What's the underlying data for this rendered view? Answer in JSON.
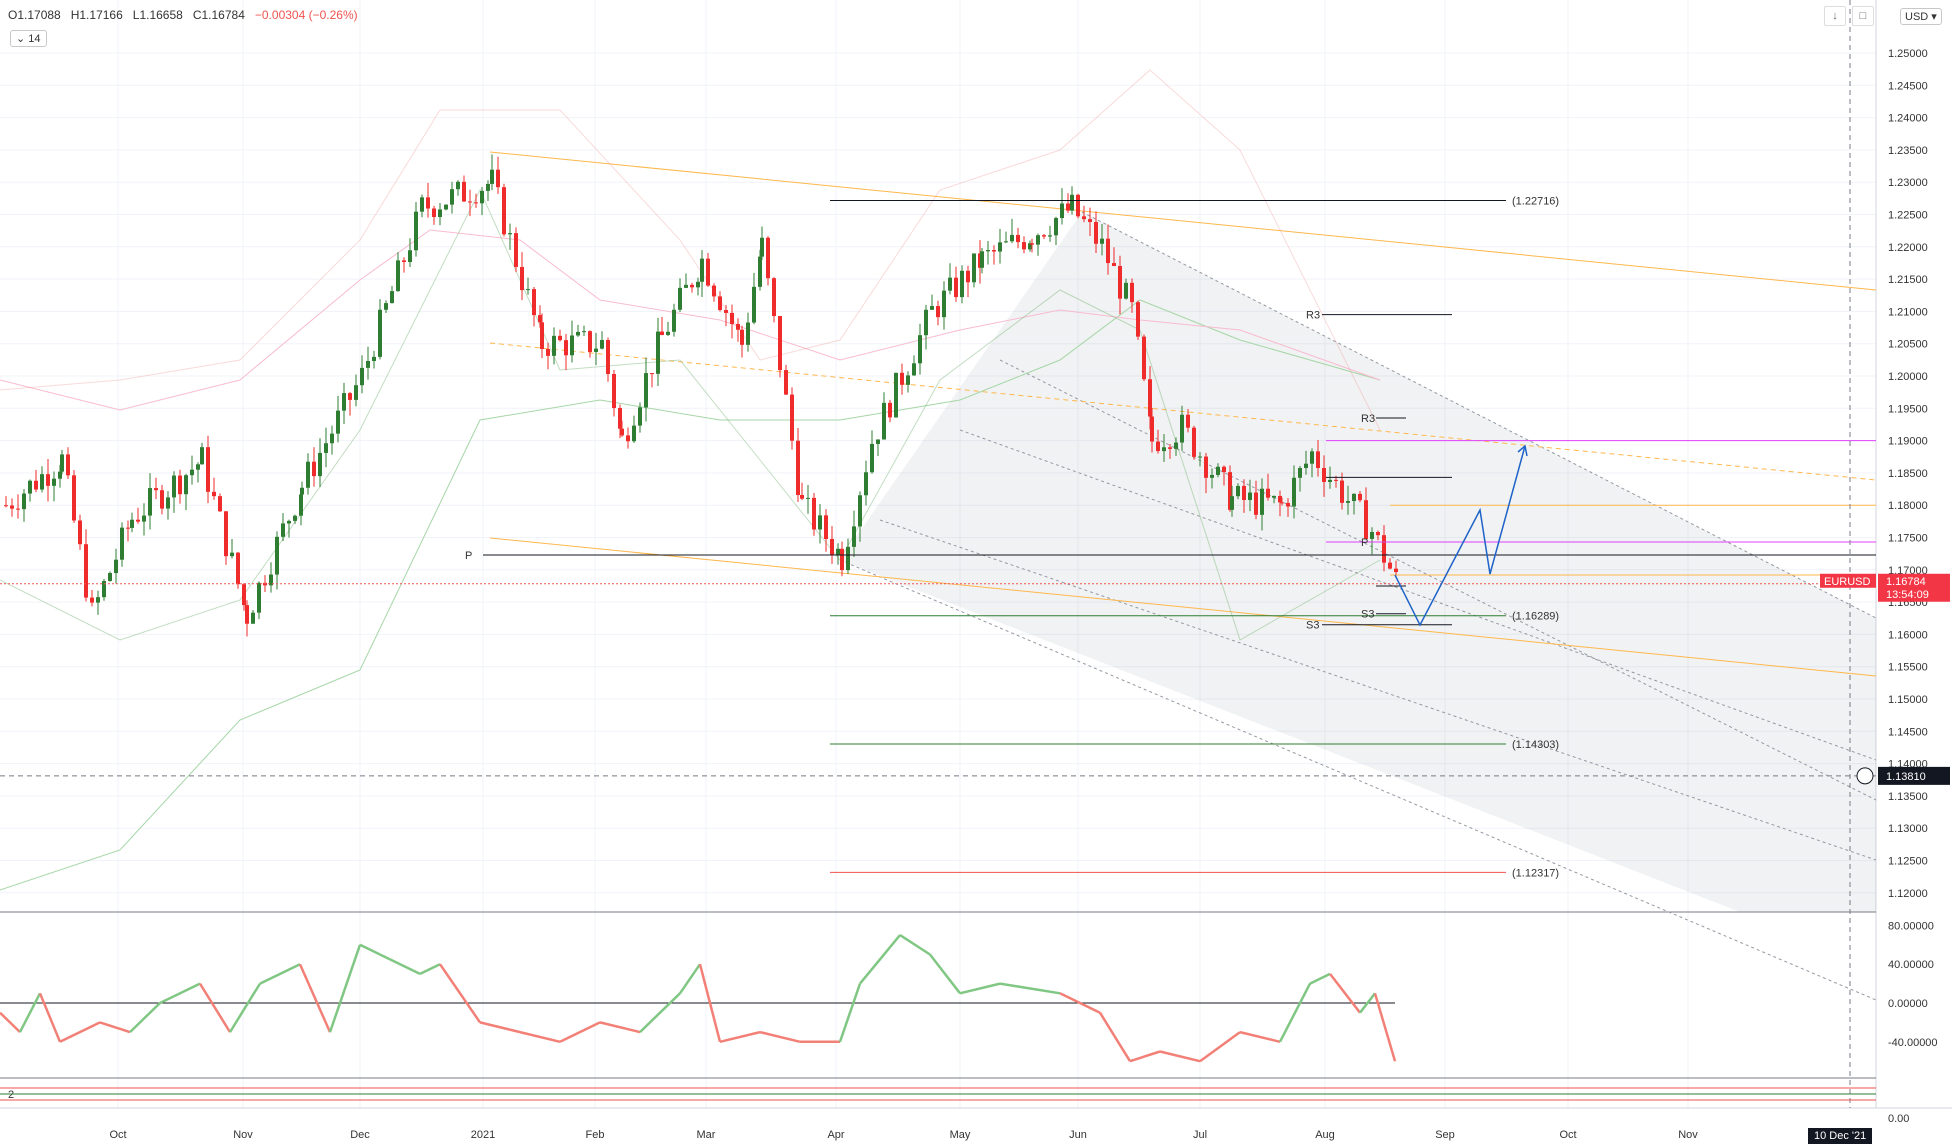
{
  "header": {
    "open": "O1.17088",
    "high": "H1.17166",
    "low": "L1.16658",
    "close": "C1.16784",
    "change": "−0.00304 (−0.26%)",
    "period": "14",
    "currency": "USD"
  },
  "chart_data": {
    "type": "candlestick",
    "symbol": "EURUSD",
    "last_price": "1.16784",
    "countdown": "13:54:09",
    "crosshair_price": "1.13810",
    "crosshair_date": "10 Dec '21",
    "price_axis_ticks": [
      "1.25000",
      "1.24500",
      "1.24000",
      "1.23500",
      "1.23000",
      "1.22500",
      "1.22000",
      "1.21500",
      "1.21000",
      "1.20500",
      "1.20000",
      "1.19500",
      "1.19000",
      "1.18500",
      "1.18000",
      "1.17500",
      "1.17000",
      "1.16500",
      "1.16000",
      "1.15500",
      "1.15000",
      "1.14500",
      "1.14000",
      "1.13500",
      "1.13000",
      "1.12500",
      "1.12000"
    ],
    "ylim": [
      1.118,
      1.253
    ],
    "time_axis_labels": [
      "Oct",
      "Nov",
      "Dec",
      "2021",
      "Feb",
      "Mar",
      "Apr",
      "May",
      "Jun",
      "Jul",
      "Aug",
      "Sep",
      "Oct",
      "Nov"
    ],
    "level_labels": [
      {
        "text": "(1.22716)",
        "value": 1.22716
      },
      {
        "text": "(1.16289)",
        "value": 1.16289
      },
      {
        "text": "(1.14303)",
        "value": 1.14303
      },
      {
        "text": "(1.12317)",
        "value": 1.12317
      }
    ],
    "pivot_labels": [
      "R3",
      "R3",
      "P",
      "P",
      "S3",
      "S3"
    ],
    "oscillator_ticks": [
      "80.00000",
      "40.00000",
      "0.00000",
      "-40.00000"
    ],
    "lower_pane_label": "2",
    "lower_pane_ticks": [
      "0.00"
    ]
  },
  "colors": {
    "bull": "#2e7d32",
    "bear": "#ef2b2b",
    "osc_up": "#81c784",
    "osc_down": "#f28077",
    "price_badge": "#f23645",
    "magenta": "#e040fb",
    "orange": "#ffb74d"
  }
}
